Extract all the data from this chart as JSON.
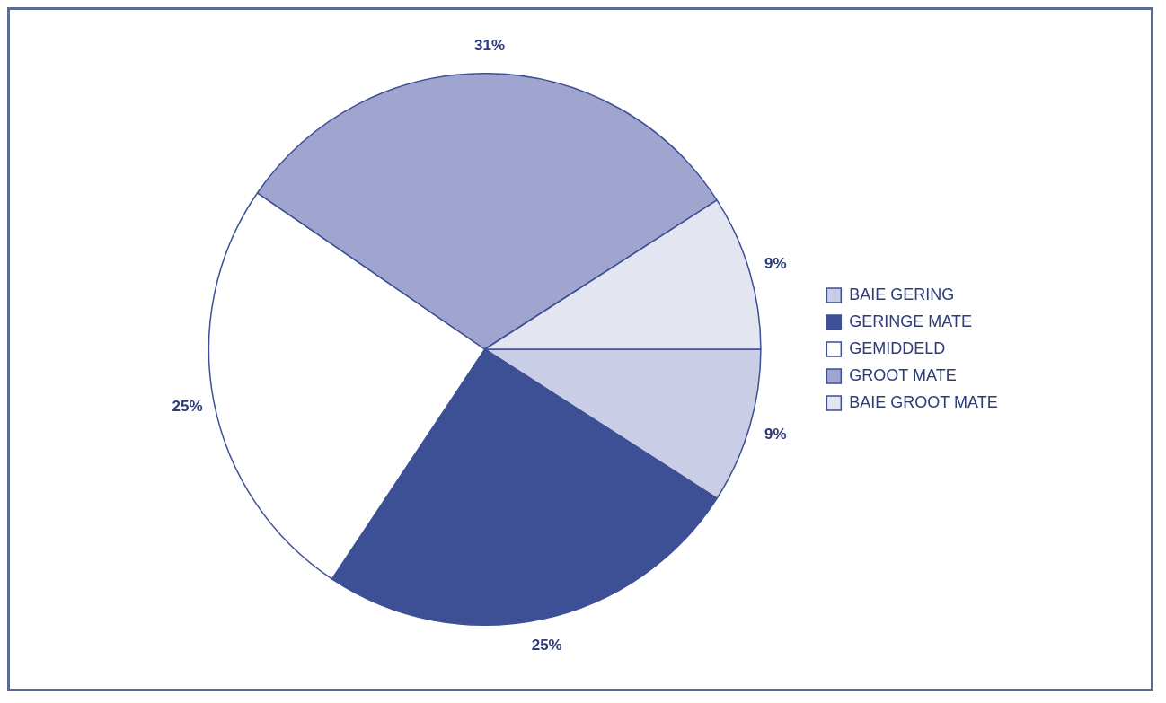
{
  "chart_data": {
    "type": "pie",
    "categories": [
      "BAIE GERING",
      "GERINGE MATE",
      "GEMIDDELD",
      "GROOT MATE",
      "BAIE GROOT MATE"
    ],
    "values": [
      9,
      25,
      25,
      31,
      9
    ],
    "value_labels": [
      "9%",
      "25%",
      "25%",
      "31%",
      "9%"
    ],
    "colors": [
      "#c9cde6",
      "#3d4f95",
      "#ffffff",
      "#9fa5cf",
      "#e3e5f1"
    ],
    "legend": "right"
  }
}
